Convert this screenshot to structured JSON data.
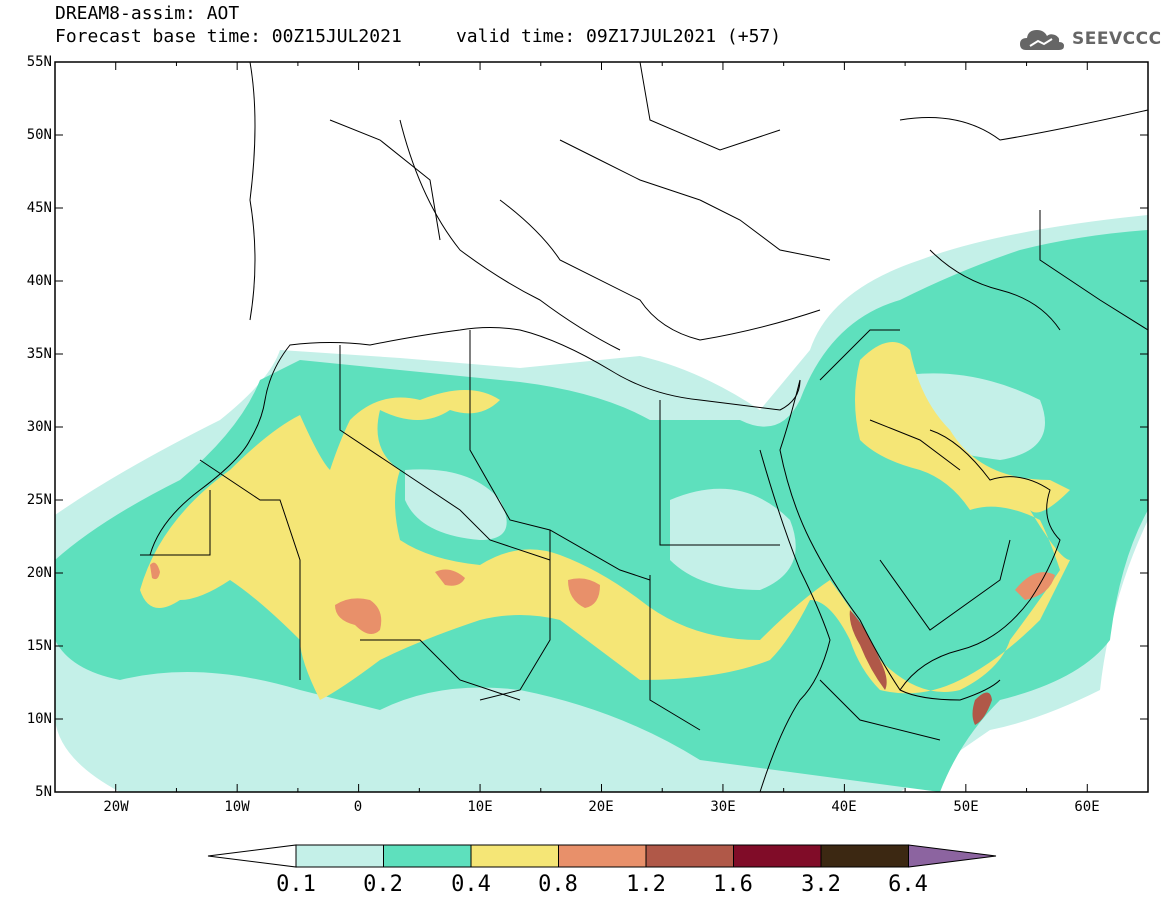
{
  "header": {
    "title_line1": "DREAM8-assim: AOT",
    "title_line2": "Forecast base time: 00Z15JUL2021     valid time: 09Z17JUL2021 (+57)",
    "logo_text": "SEEVCCC"
  },
  "map": {
    "lon_range": [
      -25,
      65
    ],
    "lat_range": [
      5,
      55
    ],
    "lat_labels": [
      "55N",
      "50N",
      "45N",
      "40N",
      "35N",
      "30N",
      "25N",
      "20N",
      "15N",
      "10N",
      "5N"
    ],
    "lon_labels": [
      "20W",
      "10W",
      "0",
      "10E",
      "20E",
      "30E",
      "40E",
      "50E",
      "60E"
    ],
    "ocean_color": "#ffffff",
    "land_border_color": "#000000"
  },
  "colorbar": {
    "levels": [
      "0.1",
      "0.2",
      "0.4",
      "0.8",
      "1.2",
      "1.6",
      "3.2",
      "6.4"
    ],
    "colors": [
      "#ffffff",
      "#c4f0e8",
      "#5ee0bd",
      "#f5e676",
      "#e8906a",
      "#b05848",
      "#800c28",
      "#3c2812",
      "#8c64a0"
    ]
  }
}
